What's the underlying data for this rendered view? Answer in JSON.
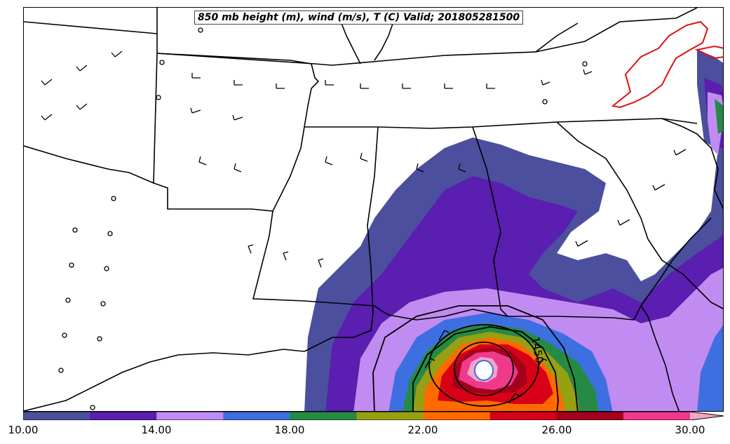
{
  "title": "850 mb height (m), wind (m/s), T (C) Valid; 201805281500",
  "contour_label": "1450",
  "colorbar": {
    "tick_labels": [
      "10.00",
      "14.00",
      "18.00",
      "22.00",
      "26.00",
      "30.00"
    ],
    "colors": [
      "#4b4f9e",
      "#5a1eb0",
      "#c08cf2",
      "#3d6fe0",
      "#268a45",
      "#96a012",
      "#ff6a00",
      "#d80016",
      "#a3001c",
      "#ee3a8c",
      "#f4a6c8"
    ]
  }
}
